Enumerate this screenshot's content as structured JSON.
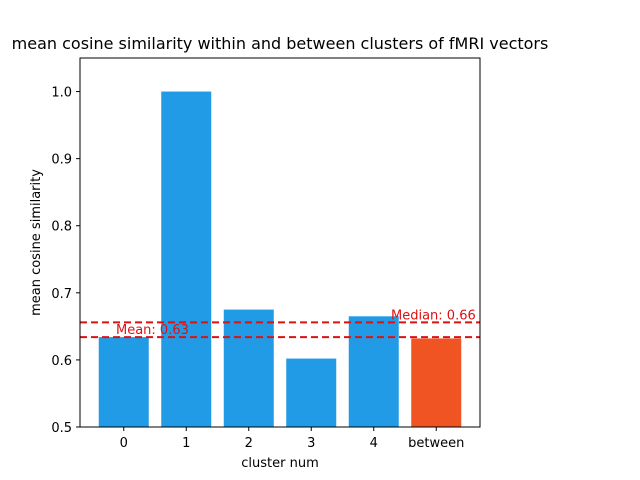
{
  "chart_data": {
    "type": "bar",
    "title": "mean cosine similarity within and between clusters of fMRI vectors",
    "xlabel": "cluster num",
    "ylabel": "mean cosine similarity",
    "categories": [
      "0",
      "1",
      "2",
      "3",
      "4",
      "between"
    ],
    "values": [
      0.634,
      1.0,
      0.675,
      0.602,
      0.665,
      0.632
    ],
    "bar_colors": [
      "#229be6",
      "#229be6",
      "#229be6",
      "#229be6",
      "#229be6",
      "#f05423"
    ],
    "ylim": [
      0.5,
      1.05
    ],
    "yticks": [
      "0.5",
      "0.6",
      "0.7",
      "0.8",
      "0.9",
      "1.0"
    ],
    "grid": false,
    "reference_lines": [
      {
        "value": 0.634,
        "label": "Mean: 0.63",
        "color": "#dd1111",
        "style": "dashed"
      },
      {
        "value": 0.656,
        "label": "Median: 0.66",
        "color": "#dd1111",
        "style": "dashed"
      }
    ]
  }
}
